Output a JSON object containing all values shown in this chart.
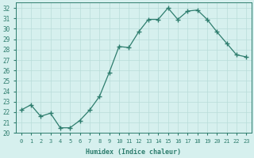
{
  "x": [
    0,
    1,
    2,
    3,
    4,
    5,
    6,
    7,
    8,
    9,
    10,
    11,
    12,
    13,
    14,
    15,
    16,
    17,
    18,
    19,
    20,
    21,
    22,
    23
  ],
  "y": [
    22.2,
    22.7,
    21.6,
    21.9,
    20.5,
    20.5,
    21.2,
    22.2,
    23.5,
    25.8,
    28.3,
    28.2,
    29.7,
    30.9,
    30.9,
    32.0,
    30.9,
    31.7,
    31.8,
    30.9,
    29.7,
    28.6,
    27.5,
    27.3
  ],
  "line_color": "#2e7d6e",
  "marker": "+",
  "bg_color": "#d6f0ee",
  "grid_color": "#b8ddd9",
  "xlabel": "Humidex (Indice chaleur)",
  "xlim": [
    -0.5,
    23.5
  ],
  "ylim": [
    20,
    32.5
  ],
  "yticks": [
    20,
    21,
    22,
    23,
    24,
    25,
    26,
    27,
    28,
    29,
    30,
    31,
    32
  ],
  "xticks": [
    0,
    1,
    2,
    3,
    4,
    5,
    6,
    7,
    8,
    9,
    10,
    11,
    12,
    13,
    14,
    15,
    16,
    17,
    18,
    19,
    20,
    21,
    22,
    23
  ],
  "tick_color": "#2e7d6e",
  "label_color": "#2e7d6e",
  "xlabel_fontsize": 6.0,
  "ytick_fontsize": 5.5,
  "xtick_fontsize": 5.0
}
